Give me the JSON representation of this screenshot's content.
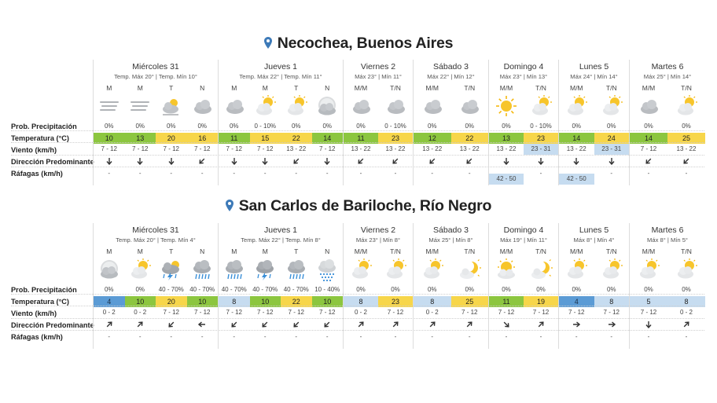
{
  "colors": {
    "temp_green": "#8cc63f",
    "temp_yellow": "#f7d64a",
    "temp_lightblue": "#c6dcf0",
    "temp_blue": "#5b9bd5",
    "wind_highlight": "#c6dcf0",
    "pin": "#3d7ab8"
  },
  "row_labels": {
    "precip": "Prob. Precipitación",
    "temp": "Temperatura (°C)",
    "wind": "Viento (km/h)",
    "direction": "Dirección Predominante",
    "gusts": "Ráfagas (km/h)"
  },
  "cities": [
    {
      "title": "Necochea, Buenos Aires",
      "days": [
        {
          "name": "Miércoles 31",
          "sub": "Temp. Máx 20° | Temp. Mín 10°",
          "cols": [
            {
              "period": "M",
              "icon": "fog-icon",
              "precip": "0%",
              "temp": "10",
              "temp_color": "green",
              "wind": "7 - 12",
              "dir": "S",
              "gust": "-"
            },
            {
              "period": "M",
              "icon": "fog-icon",
              "precip": "0%",
              "temp": "13",
              "temp_color": "green",
              "wind": "7 - 12",
              "dir": "S",
              "gust": "-"
            },
            {
              "period": "T",
              "icon": "fog-sun-icon",
              "precip": "0%",
              "temp": "20",
              "temp_color": "yellow",
              "wind": "7 - 12",
              "dir": "S",
              "gust": "-"
            },
            {
              "period": "N",
              "icon": "cloud-icon",
              "precip": "0%",
              "temp": "16",
              "temp_color": "yellow",
              "wind": "7 - 12",
              "dir": "SW",
              "gust": "-"
            }
          ]
        },
        {
          "name": "Jueves 1",
          "sub": "Temp. Máx 22° | Temp. Mín 11°",
          "cols": [
            {
              "period": "M",
              "icon": "cloud-icon",
              "precip": "0%",
              "temp": "11",
              "temp_color": "green",
              "wind": "7 - 12",
              "dir": "S",
              "gust": "-"
            },
            {
              "period": "M",
              "icon": "partly-cloudy-icon",
              "precip": "0 - 10%",
              "temp": "15",
              "temp_color": "yellow",
              "wind": "7 - 12",
              "dir": "S",
              "gust": "-"
            },
            {
              "period": "T",
              "icon": "partly-cloudy-icon",
              "precip": "0%",
              "temp": "22",
              "temp_color": "yellow",
              "wind": "13 - 22",
              "dir": "SW",
              "gust": "-"
            },
            {
              "period": "N",
              "icon": "moon-cloud-icon",
              "precip": "0%",
              "temp": "14",
              "temp_color": "green",
              "wind": "7 - 12",
              "dir": "S",
              "gust": "-"
            }
          ]
        },
        {
          "name": "Viernes 2",
          "sub": "Máx 23° | Mín 11°",
          "cols": [
            {
              "period": "M/M",
              "icon": "cloud-icon",
              "precip": "0%",
              "temp": "11",
              "temp_color": "green",
              "wind": "13 - 22",
              "dir": "SW",
              "gust": "-"
            },
            {
              "period": "T/N",
              "icon": "cloud-icon",
              "precip": "0 - 10%",
              "temp": "23",
              "temp_color": "yellow",
              "wind": "13 - 22",
              "dir": "SW",
              "gust": "-"
            }
          ]
        },
        {
          "name": "Sábado 3",
          "sub": "Máx 22° | Mín 12°",
          "cols": [
            {
              "period": "M/M",
              "icon": "cloud-icon",
              "precip": "0%",
              "temp": "12",
              "temp_color": "green",
              "wind": "13 - 22",
              "dir": "SW",
              "gust": "-"
            },
            {
              "period": "T/N",
              "icon": "cloud-icon",
              "precip": "0%",
              "temp": "22",
              "temp_color": "yellow",
              "wind": "13 - 22",
              "dir": "SW",
              "gust": "-"
            }
          ]
        },
        {
          "name": "Domingo 4",
          "sub": "Máx 23° | Mín 13°",
          "cols": [
            {
              "period": "M/M",
              "icon": "sun-icon",
              "precip": "0%",
              "temp": "13",
              "temp_color": "green",
              "wind": "13 - 22",
              "dir": "S",
              "gust": "42 - 50",
              "gust_highlight": true
            },
            {
              "period": "T/N",
              "icon": "partly-cloudy-icon",
              "precip": "0 - 10%",
              "temp": "23",
              "temp_color": "yellow",
              "wind": "23 - 31",
              "wind_highlight": true,
              "dir": "S",
              "gust": "-"
            }
          ]
        },
        {
          "name": "Lunes 5",
          "sub": "Máx 24° | Mín 14°",
          "cols": [
            {
              "period": "M/M",
              "icon": "partly-cloudy-icon",
              "precip": "0%",
              "temp": "14",
              "temp_color": "green",
              "wind": "13 - 22",
              "dir": "S",
              "gust": "42 - 50",
              "gust_highlight": true
            },
            {
              "period": "T/N",
              "icon": "partly-cloudy-icon",
              "precip": "0%",
              "temp": "24",
              "temp_color": "yellow",
              "wind": "23 - 31",
              "wind_highlight": true,
              "dir": "S",
              "gust": "-"
            }
          ]
        },
        {
          "name": "Martes 6",
          "sub": "Máx 25° | Mín 14°",
          "cols": [
            {
              "period": "M/M",
              "icon": "cloud-icon",
              "precip": "0%",
              "temp": "14",
              "temp_color": "green",
              "wind": "7 - 12",
              "dir": "SW",
              "gust": "-"
            },
            {
              "period": "T/N",
              "icon": "partly-cloudy-icon",
              "precip": "0%",
              "temp": "25",
              "temp_color": "yellow",
              "wind": "13 - 22",
              "dir": "SW",
              "gust": "-"
            }
          ]
        }
      ]
    },
    {
      "title": "San Carlos de Bariloche, Río Negro",
      "days": [
        {
          "name": "Miércoles 31",
          "sub": "Temp. Máx 20° | Temp. Mín 4°",
          "cols": [
            {
              "period": "M",
              "icon": "moon-cloud-icon",
              "precip": "0%",
              "temp": "4",
              "temp_color": "blue",
              "wind": "0 - 2",
              "dir": "NE",
              "gust": "-"
            },
            {
              "period": "M",
              "icon": "partly-cloudy-icon",
              "precip": "0%",
              "temp": "10",
              "temp_color": "green",
              "wind": "0 - 2",
              "dir": "NE",
              "gust": "-"
            },
            {
              "period": "T",
              "icon": "storm-sun-icon",
              "precip": "40 - 70%",
              "temp": "20",
              "temp_color": "yellow",
              "wind": "7 - 12",
              "dir": "SW",
              "gust": "-"
            },
            {
              "period": "N",
              "icon": "rain-icon",
              "precip": "40 - 70%",
              "temp": "10",
              "temp_color": "green",
              "wind": "7 - 12",
              "dir": "W",
              "gust": "-"
            }
          ]
        },
        {
          "name": "Jueves 1",
          "sub": "Temp. Máx 22° | Temp. Mín 8°",
          "cols": [
            {
              "period": "M",
              "icon": "rain-icon",
              "precip": "40 - 70%",
              "temp": "8",
              "temp_color": "lightblue",
              "wind": "7 - 12",
              "dir": "SW",
              "gust": "-"
            },
            {
              "period": "M",
              "icon": "storm-icon",
              "precip": "40 - 70%",
              "temp": "10",
              "temp_color": "green",
              "wind": "7 - 12",
              "dir": "SW",
              "gust": "-"
            },
            {
              "period": "T",
              "icon": "rain-icon",
              "precip": "40 - 70%",
              "temp": "22",
              "temp_color": "yellow",
              "wind": "7 - 12",
              "dir": "SW",
              "gust": "-"
            },
            {
              "period": "N",
              "icon": "snow-icon",
              "precip": "10 - 40%",
              "temp": "10",
              "temp_color": "green",
              "wind": "7 - 12",
              "dir": "SW",
              "gust": "-"
            }
          ]
        },
        {
          "name": "Viernes 2",
          "sub": "Máx 23° | Mín 8°",
          "cols": [
            {
              "period": "M/M",
              "icon": "partly-cloudy-icon",
              "precip": "0%",
              "temp": "8",
              "temp_color": "lightblue",
              "wind": "0 - 2",
              "dir": "NE",
              "gust": "-"
            },
            {
              "period": "T/N",
              "icon": "partly-cloudy-icon",
              "precip": "0%",
              "temp": "23",
              "temp_color": "yellow",
              "wind": "7 - 12",
              "dir": "NE",
              "gust": "-"
            }
          ]
        },
        {
          "name": "Sábado 3",
          "sub": "Máx 25° | Mín 8°",
          "cols": [
            {
              "period": "M/M",
              "icon": "partly-cloudy-icon",
              "precip": "0%",
              "temp": "8",
              "temp_color": "lightblue",
              "wind": "0 - 2",
              "dir": "NE",
              "gust": "-"
            },
            {
              "period": "T/N",
              "icon": "moon-sun-icon",
              "precip": "0%",
              "temp": "25",
              "temp_color": "yellow",
              "wind": "7 - 12",
              "dir": "NE",
              "gust": "-"
            }
          ]
        },
        {
          "name": "Domingo 4",
          "sub": "Máx 19° | Mín 11°",
          "cols": [
            {
              "period": "M/M",
              "icon": "sun-cloud-icon",
              "precip": "0%",
              "temp": "11",
              "temp_color": "green",
              "wind": "7 - 12",
              "dir": "SE",
              "gust": "-"
            },
            {
              "period": "T/N",
              "icon": "moon-sun-icon",
              "precip": "0%",
              "temp": "19",
              "temp_color": "yellow",
              "wind": "7 - 12",
              "dir": "NE",
              "gust": "-"
            }
          ]
        },
        {
          "name": "Lunes 5",
          "sub": "Máx 8° | Mín 4°",
          "cols": [
            {
              "period": "M/M",
              "icon": "partly-cloudy-icon",
              "precip": "0%",
              "temp": "4",
              "temp_color": "blue",
              "wind": "7 - 12",
              "dir": "E",
              "gust": "-"
            },
            {
              "period": "T/N",
              "icon": "partly-cloudy-icon",
              "precip": "0%",
              "temp": "8",
              "temp_color": "lightblue",
              "wind": "7 - 12",
              "dir": "E",
              "gust": "-"
            }
          ]
        },
        {
          "name": "Martes 6",
          "sub": "Máx 8° | Mín 5°",
          "cols": [
            {
              "period": "M/M",
              "icon": "partly-cloudy-icon",
              "precip": "0%",
              "temp": "5",
              "temp_color": "lightblue",
              "wind": "7 - 12",
              "dir": "S",
              "gust": "-"
            },
            {
              "period": "T/N",
              "icon": "partly-cloudy-icon",
              "precip": "0%",
              "temp": "8",
              "temp_color": "lightblue",
              "wind": "0 - 2",
              "dir": "NE",
              "gust": "-"
            }
          ]
        }
      ]
    }
  ]
}
